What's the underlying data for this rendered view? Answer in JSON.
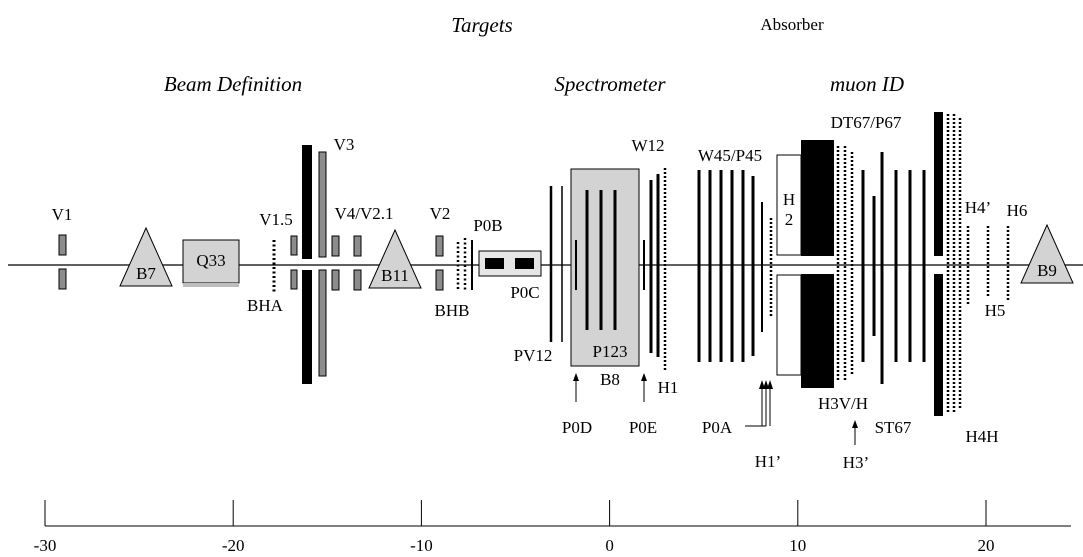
{
  "headers": {
    "targets": "Targets",
    "absorber": "Absorber",
    "beam_definition": "Beam Definition",
    "spectrometer": "Spectrometer",
    "muon_id": "muon ID"
  },
  "labels": {
    "v1": "V1",
    "b7": "B7",
    "q33": "Q33",
    "v1_5": "V1.5",
    "bha": "BHA",
    "v3": "V3",
    "v4_v2_1": "V4/V2.1",
    "b11": "B11",
    "v2": "V2",
    "bhb": "BHB",
    "p0b": "P0B",
    "p0c": "P0C",
    "pv12": "PV12",
    "p123": "P123",
    "b8": "B8",
    "w12": "W12",
    "h1": "H1",
    "p0d": "P0D",
    "p0e": "P0E",
    "w45_p45": "W45/P45",
    "h2_a": "H",
    "h2_b": "2",
    "p0a": "P0A",
    "h1_prime": "H1’",
    "dt67_p67": "DT67/P67",
    "h3v_h": "H3V/H",
    "st67": "ST67",
    "h3_prime": "H3’",
    "h4h": "H4H",
    "h4_prime": "H4’",
    "h5": "H5",
    "h6": "H6",
    "b9": "B9"
  },
  "axis": {
    "unit_note": "",
    "min": -30,
    "max": 20,
    "ticks": [
      {
        "value": -30,
        "label": "-30"
      },
      {
        "value": -20,
        "label": "-20"
      },
      {
        "value": -10,
        "label": "-10"
      },
      {
        "value": 0,
        "label": "0"
      },
      {
        "value": 10,
        "label": "10"
      },
      {
        "value": 20,
        "label": "20"
      }
    ]
  },
  "colors": {
    "ink": "#000000",
    "magnet_fill": "#d3d3d3",
    "counter_fill": "#8c8c8c",
    "light_bar": "#bdbdbd"
  }
}
